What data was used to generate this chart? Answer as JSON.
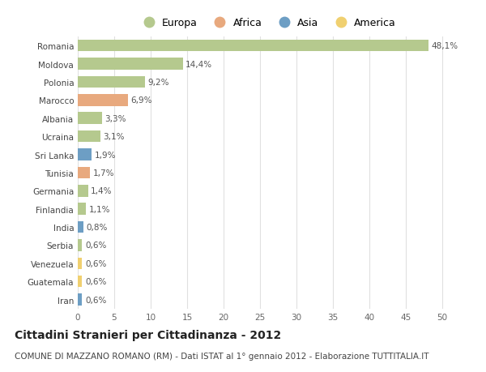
{
  "countries": [
    "Romania",
    "Moldova",
    "Polonia",
    "Marocco",
    "Albania",
    "Ucraina",
    "Sri Lanka",
    "Tunisia",
    "Germania",
    "Finlandia",
    "India",
    "Serbia",
    "Venezuela",
    "Guatemala",
    "Iran"
  ],
  "values": [
    48.1,
    14.4,
    9.2,
    6.9,
    3.3,
    3.1,
    1.9,
    1.7,
    1.4,
    1.1,
    0.8,
    0.6,
    0.6,
    0.6,
    0.6
  ],
  "labels": [
    "48,1%",
    "14,4%",
    "9,2%",
    "6,9%",
    "3,3%",
    "3,1%",
    "1,9%",
    "1,7%",
    "1,4%",
    "1,1%",
    "0,8%",
    "0,6%",
    "0,6%",
    "0,6%",
    "0,6%"
  ],
  "continents": [
    "Europa",
    "Europa",
    "Europa",
    "Africa",
    "Europa",
    "Europa",
    "Asia",
    "Africa",
    "Europa",
    "Europa",
    "Asia",
    "Europa",
    "America",
    "America",
    "Asia"
  ],
  "continent_colors": {
    "Europa": "#b5c98e",
    "Africa": "#e8a97e",
    "Asia": "#6d9ec4",
    "America": "#f0d070"
  },
  "legend_order": [
    "Europa",
    "Africa",
    "Asia",
    "America"
  ],
  "title": "Cittadini Stranieri per Cittadinanza - 2012",
  "subtitle": "COMUNE DI MAZZANO ROMANO (RM) - Dati ISTAT al 1° gennaio 2012 - Elaborazione TUTTITALIA.IT",
  "xlim": [
    0,
    52
  ],
  "xticks": [
    0,
    5,
    10,
    15,
    20,
    25,
    30,
    35,
    40,
    45,
    50
  ],
  "background_color": "#ffffff",
  "grid_color": "#e0e0e0",
  "title_fontsize": 10,
  "subtitle_fontsize": 7.5,
  "label_fontsize": 7.5,
  "tick_fontsize": 7.5,
  "legend_fontsize": 9
}
